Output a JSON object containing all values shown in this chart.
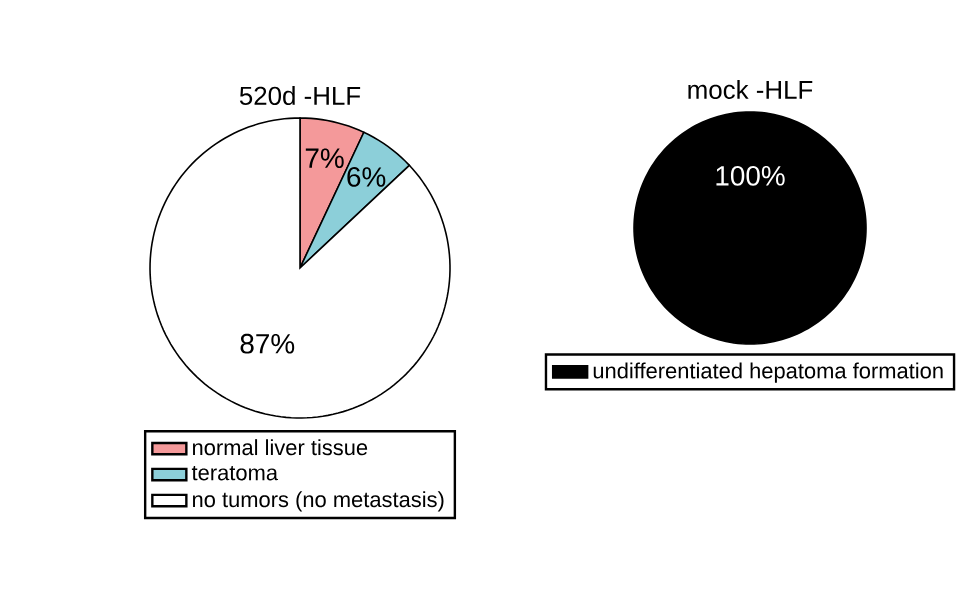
{
  "chart_data": [
    {
      "type": "pie",
      "title": "520d -HLF",
      "categories": [
        "normal liver tissue",
        "teratoma",
        "no tumors (no metastasis)"
      ],
      "values": [
        7,
        6,
        87
      ],
      "colors": [
        "#f4999a",
        "#8ccfd9",
        "#ffffff"
      ],
      "value_labels": [
        "7%",
        "6%",
        "87%"
      ],
      "legend": "bottom"
    },
    {
      "type": "pie",
      "title": "mock -HLF",
      "categories": [
        "undifferentiated hepatoma formation"
      ],
      "values": [
        100
      ],
      "colors": [
        "#000000"
      ],
      "value_labels": [
        "100%"
      ],
      "legend": "bottom"
    }
  ]
}
